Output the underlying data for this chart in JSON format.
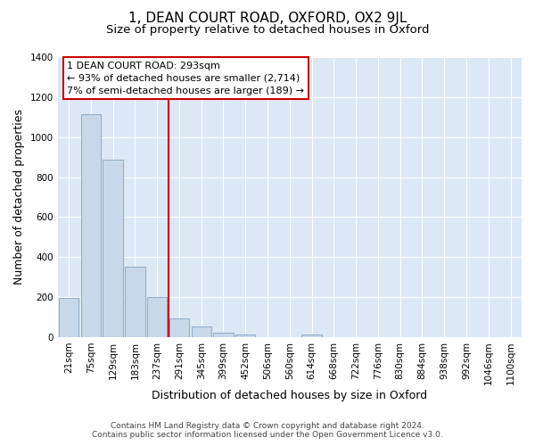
{
  "title": "1, DEAN COURT ROAD, OXFORD, OX2 9JL",
  "subtitle": "Size of property relative to detached houses in Oxford",
  "bar_labels": [
    "21sqm",
    "75sqm",
    "129sqm",
    "183sqm",
    "237sqm",
    "291sqm",
    "345sqm",
    "399sqm",
    "452sqm",
    "506sqm",
    "560sqm",
    "614sqm",
    "668sqm",
    "722sqm",
    "776sqm",
    "830sqm",
    "884sqm",
    "938sqm",
    "992sqm",
    "1046sqm",
    "1100sqm"
  ],
  "bar_values": [
    195,
    1115,
    885,
    350,
    200,
    95,
    55,
    20,
    15,
    0,
    0,
    12,
    0,
    0,
    0,
    0,
    0,
    0,
    0,
    0,
    0
  ],
  "bar_color": "#c8d8ea",
  "bar_edge_color": "#8eabc8",
  "vline_x_idx": 5,
  "vline_color": "#cc0000",
  "annotation_line1": "1 DEAN COURT ROAD: 293sqm",
  "annotation_line2": "← 93% of detached houses are smaller (2,714)",
  "annotation_line3": "7% of semi-detached houses are larger (189) →",
  "box_edge_color": "#cc0000",
  "xlabel": "Distribution of detached houses by size in Oxford",
  "ylabel": "Number of detached properties",
  "ylim": [
    0,
    1400
  ],
  "yticks": [
    0,
    200,
    400,
    600,
    800,
    1000,
    1200,
    1400
  ],
  "footer_text": "Contains HM Land Registry data © Crown copyright and database right 2024.\nContains public sector information licensed under the Open Government Licence v3.0.",
  "bg_color": "#ffffff",
  "plot_bg_color": "#dce8f5",
  "grid_color": "#ffffff",
  "title_fontsize": 11,
  "subtitle_fontsize": 9.5,
  "axis_label_fontsize": 9,
  "tick_fontsize": 7.5,
  "annotation_fontsize": 8,
  "footer_fontsize": 6.5
}
